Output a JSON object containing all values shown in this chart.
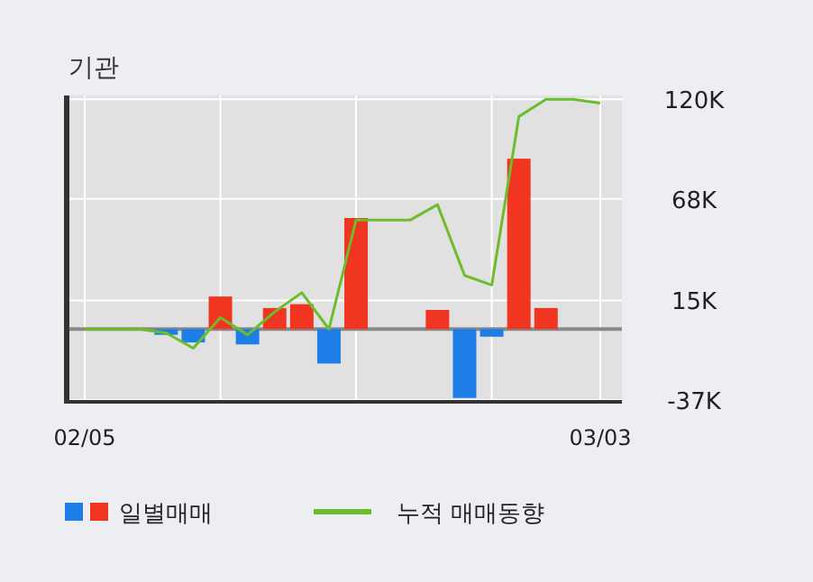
{
  "chart_data": {
    "type": "bar",
    "title": "기관",
    "categories": [
      "02/05",
      null,
      null,
      null,
      null,
      null,
      null,
      null,
      null,
      null,
      null,
      null,
      null,
      null,
      null,
      null,
      null,
      null,
      null,
      "03/03"
    ],
    "series": [
      {
        "name": "일별매매",
        "colors": [
          "#1e7ee8",
          "#1e7ee8",
          "#1e7ee8",
          "#1e7ee8",
          "#1e7ee8",
          "#f03520",
          "#1e7ee8",
          "#f03520",
          "#f03520",
          "#1e7ee8",
          "#f03520",
          "#1e7ee8",
          "#1e7ee8",
          "#f03520",
          "#1e7ee8",
          "#1e7ee8",
          "#f03520",
          "#f03520",
          "#1e7ee8",
          "#1e7ee8"
        ],
        "values": [
          null,
          null,
          null,
          -3,
          -7,
          17,
          -8,
          11,
          13,
          -18,
          58,
          null,
          null,
          10,
          -36,
          -4,
          89,
          11,
          null,
          null
        ]
      },
      {
        "name": "누적 매매동향",
        "type": "line",
        "color": "#6cbd2c",
        "values": [
          0,
          0,
          0,
          -2,
          -10,
          6,
          -3,
          9,
          19,
          0,
          57,
          57,
          57,
          65,
          28,
          23,
          111,
          120,
          120,
          118
        ]
      }
    ],
    "ylim": [
      -38,
      122
    ],
    "yticks": [
      {
        "value": -37,
        "label": "-37K"
      },
      {
        "value": 15,
        "label": "15K"
      },
      {
        "value": 68,
        "label": "68K"
      },
      {
        "value": 120,
        "label": "120K"
      }
    ],
    "ref_lines": [
      {
        "axis": "y",
        "value": 0,
        "color": "#888888"
      }
    ],
    "grid": true,
    "legend": "bottom",
    "marker": "none",
    "line_style": "solid"
  }
}
